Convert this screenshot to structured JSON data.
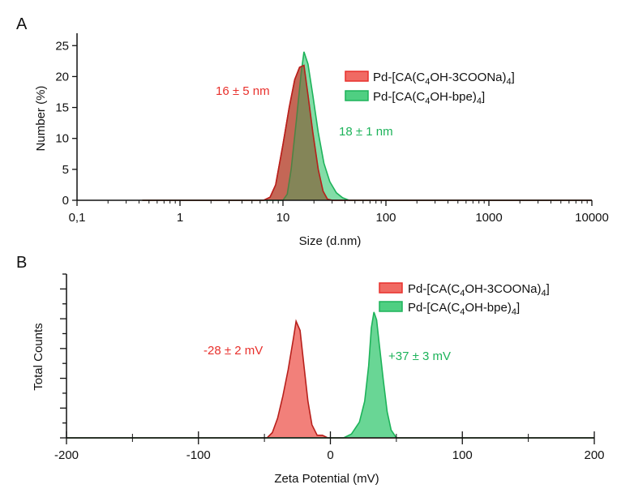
{
  "colors": {
    "red": "#e8302c",
    "red_fill": "#f06a63",
    "green": "#1db35a",
    "green_fill": "#4fcf82",
    "axis": "#111111"
  },
  "chart_data": [
    {
      "panel_label": "A",
      "type": "area",
      "title": "",
      "xlabel": "Size (d.nm)",
      "ylabel": "Number (%)",
      "xscale": "log",
      "xlim": [
        0.1,
        10000
      ],
      "ylim": [
        0,
        27
      ],
      "x_ticks": [
        0.1,
        1,
        10,
        100,
        1000,
        10000
      ],
      "x_tick_labels": [
        "0,1",
        "1",
        "10",
        "100",
        "1000",
        "10000"
      ],
      "y_ticks": [
        0,
        5,
        10,
        15,
        20,
        25
      ],
      "y_tick_labels": [
        "0",
        "5",
        "10",
        "15",
        "20",
        "25"
      ],
      "grid": false,
      "legend_position": "top-right",
      "series": [
        {
          "name": "Pd-[CA(C4OH-3COONa)4]",
          "legend": {
            "pre": "Pd-[CA(C",
            "sub1": "4",
            "mid": "OH-3COONa)",
            "sub2": "4",
            "post": "]"
          },
          "color": "red",
          "points": [
            [
              0.43,
              0
            ],
            [
              6.5,
              0
            ],
            [
              7.5,
              0.5
            ],
            [
              8.5,
              2.5
            ],
            [
              10,
              9
            ],
            [
              11.5,
              15
            ],
            [
              13,
              19.5
            ],
            [
              14.5,
              21.5
            ],
            [
              16,
              21.8
            ],
            [
              17.5,
              17
            ],
            [
              19.5,
              11
            ],
            [
              22,
              5
            ],
            [
              24.5,
              1.5
            ],
            [
              27,
              0.2
            ],
            [
              30,
              0
            ],
            [
              10000,
              0
            ]
          ]
        },
        {
          "name": "Pd-[CA(C4OH-bpe)4]",
          "legend": {
            "pre": "Pd-[CA(C",
            "sub1": "4",
            "mid": "OH-bpe)",
            "sub2": "4",
            "post": "]"
          },
          "color": "green",
          "points": [
            [
              0.43,
              0
            ],
            [
              10,
              0
            ],
            [
              11,
              1
            ],
            [
              12,
              5
            ],
            [
              13.5,
              13
            ],
            [
              15,
              20.5
            ],
            [
              16,
              24
            ],
            [
              17.5,
              22
            ],
            [
              19.5,
              17
            ],
            [
              22,
              11
            ],
            [
              25,
              6
            ],
            [
              28.5,
              3
            ],
            [
              33,
              1.2
            ],
            [
              38,
              0.4
            ],
            [
              44,
              0
            ],
            [
              10000,
              0
            ]
          ]
        }
      ],
      "annotations": [
        {
          "text": "16 ± 5 nm",
          "color": "red"
        },
        {
          "text": "18 ± 1 nm",
          "color": "green"
        }
      ]
    },
    {
      "panel_label": "B",
      "type": "area",
      "title": "",
      "xlabel": "Zeta Potential (mV)",
      "ylabel": "Total Counts",
      "xscale": "linear",
      "xlim": [
        -200,
        200
      ],
      "x_ticks": [
        -200,
        -100,
        0,
        100,
        200
      ],
      "x_tick_labels": [
        "-200",
        "-100",
        "0",
        "100",
        "200"
      ],
      "y_tick_count": 12,
      "y_values_shown": false,
      "grid": false,
      "legend_position": "top-right",
      "series": [
        {
          "name": "Pd-[CA(C4OH-3COONa)4]",
          "legend": {
            "pre": "Pd-[CA(C",
            "sub1": "4",
            "mid": "OH-3COONa)",
            "sub2": "4",
            "post": "]"
          },
          "color": "red",
          "peak_relative": 0.89,
          "points": [
            [
              -200,
              0
            ],
            [
              -48,
              0
            ],
            [
              -44,
              0.04
            ],
            [
              -40,
              0.15
            ],
            [
              -36,
              0.32
            ],
            [
              -32,
              0.52
            ],
            [
              -28,
              0.76
            ],
            [
              -26,
              0.89
            ],
            [
              -23,
              0.82
            ],
            [
              -20,
              0.55
            ],
            [
              -17,
              0.28
            ],
            [
              -14,
              0.1
            ],
            [
              -10,
              0.02
            ],
            [
              -6,
              0.02
            ],
            [
              -2,
              0
            ],
            [
              200,
              0
            ]
          ]
        },
        {
          "name": "Pd-[CA(C4OH-bpe)4]",
          "legend": {
            "pre": "Pd-[CA(C",
            "sub1": "4",
            "mid": "OH-bpe)",
            "sub2": "4",
            "post": "]"
          },
          "color": "green",
          "peak_relative": 0.96,
          "points": [
            [
              -200,
              0
            ],
            [
              10,
              0
            ],
            [
              16,
              0.03
            ],
            [
              22,
              0.12
            ],
            [
              26,
              0.28
            ],
            [
              29,
              0.55
            ],
            [
              31,
              0.84
            ],
            [
              33,
              0.96
            ],
            [
              35,
              0.9
            ],
            [
              37,
              0.72
            ],
            [
              40,
              0.45
            ],
            [
              43,
              0.2
            ],
            [
              46,
              0.06
            ],
            [
              50,
              0
            ],
            [
              200,
              0
            ]
          ]
        }
      ],
      "annotations": [
        {
          "text": "-28 ± 2 mV",
          "color": "red"
        },
        {
          "text": "+37 ± 3 mV",
          "color": "green"
        }
      ]
    }
  ]
}
